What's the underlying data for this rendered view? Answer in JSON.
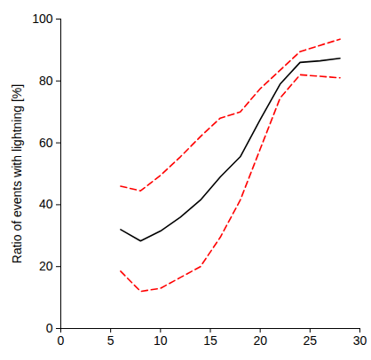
{
  "chart_data": {
    "type": "line",
    "y_label": "Ratio of events with lightning [%]",
    "x": [
      6,
      8,
      10,
      12,
      14,
      16,
      18,
      20,
      22,
      24,
      26,
      28
    ],
    "series": [
      {
        "color": "#ff0000",
        "line_style": "dashed",
        "values": [
          46,
          44.5,
          49.5,
          55.5,
          62,
          68,
          70,
          77.5,
          83.5,
          89.5,
          91.5,
          93.5
        ]
      },
      {
        "color": "#000000",
        "line_style": "solid",
        "values": [
          32,
          28.3,
          31.5,
          36,
          41.5,
          49,
          55.5,
          67.5,
          79,
          86,
          86.5,
          87.3
        ]
      },
      {
        "color": "#ff0000",
        "line_style": "dashed",
        "values": [
          18.5,
          12,
          13,
          16.5,
          20,
          29.5,
          41.5,
          58,
          74.5,
          82,
          81.5,
          81
        ]
      }
    ],
    "xlim": [
      0,
      30
    ],
    "xticks": [
      0,
      5,
      10,
      15,
      20,
      25,
      30
    ],
    "ylim": [
      0,
      100
    ],
    "yticks": [
      0,
      20,
      40,
      60,
      80,
      100
    ],
    "grid": false
  }
}
